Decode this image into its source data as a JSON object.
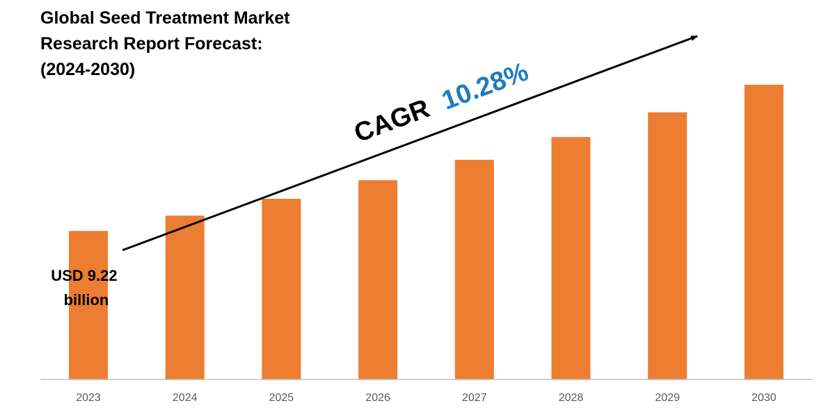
{
  "title_lines": [
    "Global Seed Treatment Market",
    "Research Report Forecast:",
    "(2024-2030)"
  ],
  "annotations": {
    "start_value_lines": [
      "USD 9.22",
      "billion"
    ],
    "cagr_label": "CAGR",
    "cagr_value": "10.28%"
  },
  "colors": {
    "bar": "#ED7D31",
    "cagr_value": "#1F7BC0",
    "text": "#000000",
    "axis": "#BFBFBF"
  },
  "chart_data": {
    "type": "bar",
    "categories": [
      "2023",
      "2024",
      "2025",
      "2026",
      "2027",
      "2028",
      "2029",
      "2030"
    ],
    "values": [
      9.22,
      10.17,
      11.22,
      12.37,
      13.64,
      15.05,
      16.59,
      18.3
    ],
    "ylim": [
      0,
      20.8
    ],
    "grid": false,
    "legend": "none",
    "xlabel": "",
    "ylabel": ""
  }
}
